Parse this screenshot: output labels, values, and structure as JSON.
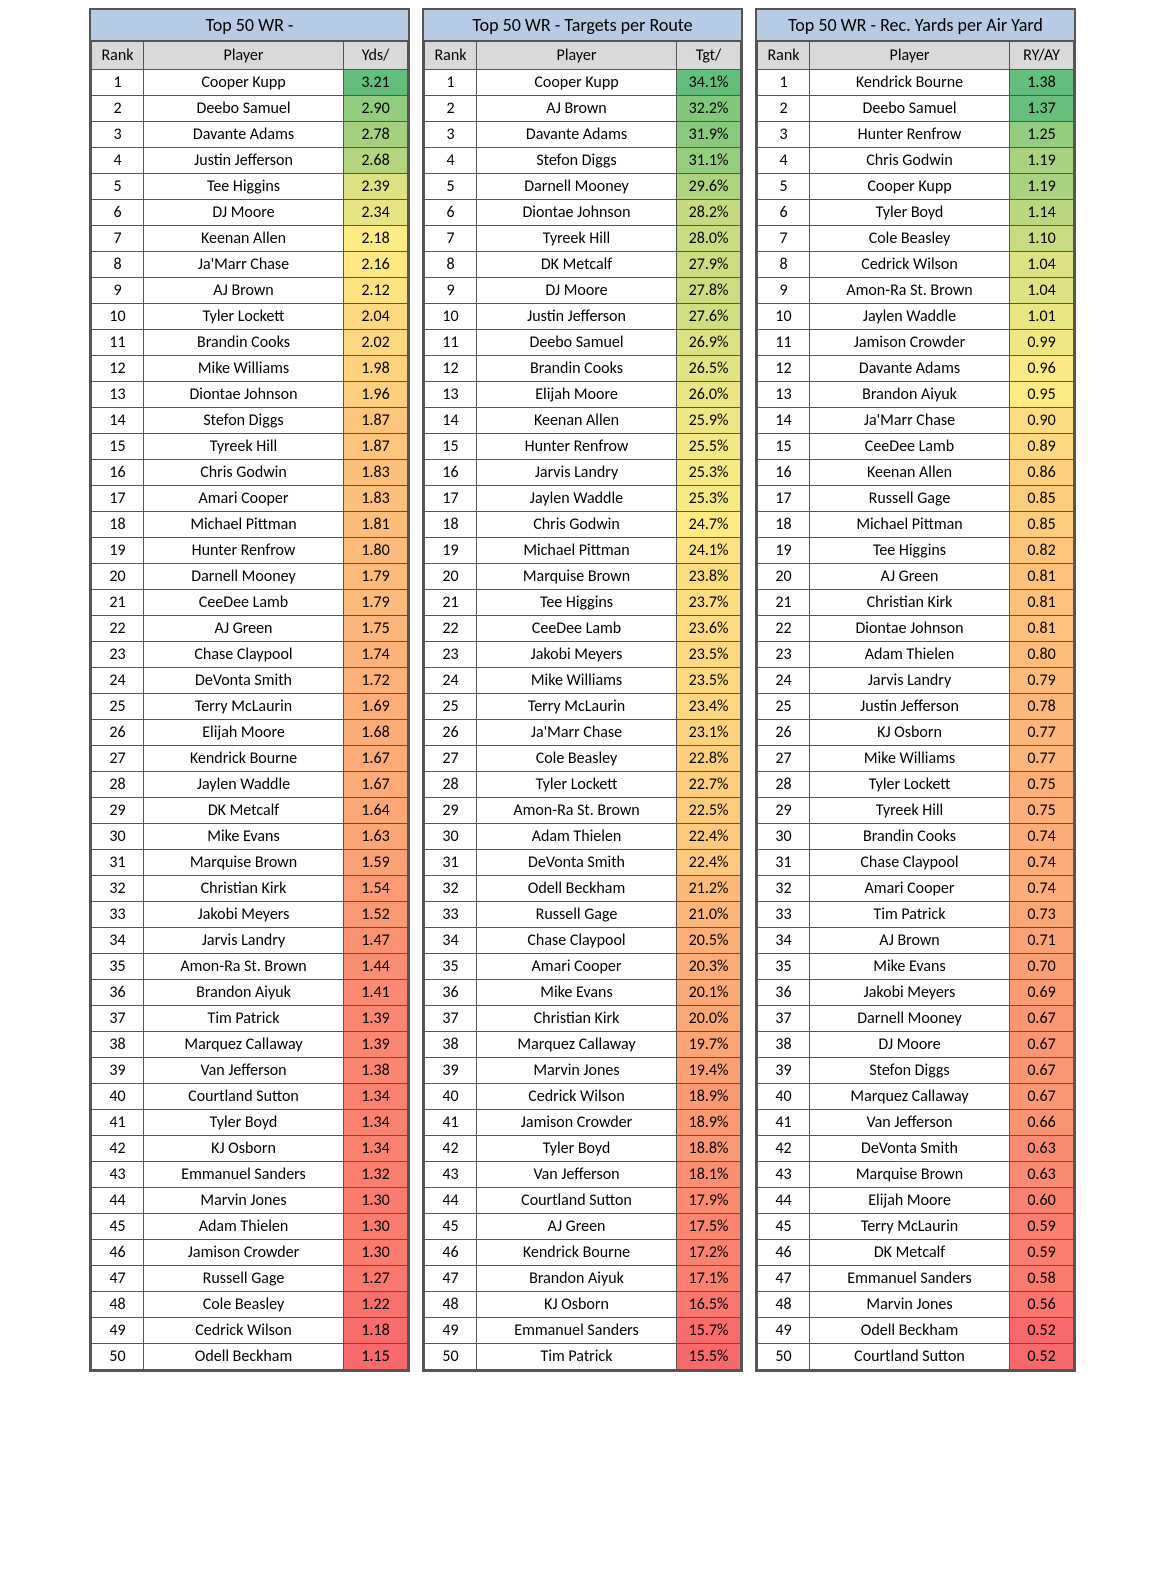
{
  "color_scale": {
    "min_color": "#f8696b",
    "mid_color": "#ffeb84",
    "max_color": "#63be7b"
  },
  "tables": [
    {
      "title": "Top 50 WR -",
      "headers": {
        "rank": "Rank",
        "player": "Player",
        "value": "Yds/"
      },
      "value_fmt": "num2",
      "v_min": 1.15,
      "v_max": 3.21,
      "rows": [
        {
          "rank": 1,
          "player": "Cooper Kupp",
          "value": 3.21
        },
        {
          "rank": 2,
          "player": "Deebo Samuel",
          "value": 2.9
        },
        {
          "rank": 3,
          "player": "Davante Adams",
          "value": 2.78
        },
        {
          "rank": 4,
          "player": "Justin Jefferson",
          "value": 2.68
        },
        {
          "rank": 5,
          "player": "Tee Higgins",
          "value": 2.39
        },
        {
          "rank": 6,
          "player": "DJ Moore",
          "value": 2.34
        },
        {
          "rank": 7,
          "player": "Keenan Allen",
          "value": 2.18
        },
        {
          "rank": 8,
          "player": "Ja'Marr Chase",
          "value": 2.16
        },
        {
          "rank": 9,
          "player": "AJ Brown",
          "value": 2.12
        },
        {
          "rank": 10,
          "player": "Tyler Lockett",
          "value": 2.04
        },
        {
          "rank": 11,
          "player": "Brandin Cooks",
          "value": 2.02
        },
        {
          "rank": 12,
          "player": "Mike Williams",
          "value": 1.98
        },
        {
          "rank": 13,
          "player": "Diontae Johnson",
          "value": 1.96
        },
        {
          "rank": 14,
          "player": "Stefon Diggs",
          "value": 1.87
        },
        {
          "rank": 15,
          "player": "Tyreek Hill",
          "value": 1.87
        },
        {
          "rank": 16,
          "player": "Chris Godwin",
          "value": 1.83
        },
        {
          "rank": 17,
          "player": "Amari Cooper",
          "value": 1.83
        },
        {
          "rank": 18,
          "player": "Michael Pittman",
          "value": 1.81
        },
        {
          "rank": 19,
          "player": "Hunter Renfrow",
          "value": 1.8
        },
        {
          "rank": 20,
          "player": "Darnell Mooney",
          "value": 1.79
        },
        {
          "rank": 21,
          "player": "CeeDee Lamb",
          "value": 1.79
        },
        {
          "rank": 22,
          "player": "AJ Green",
          "value": 1.75
        },
        {
          "rank": 23,
          "player": "Chase Claypool",
          "value": 1.74
        },
        {
          "rank": 24,
          "player": "DeVonta Smith",
          "value": 1.72
        },
        {
          "rank": 25,
          "player": "Terry McLaurin",
          "value": 1.69
        },
        {
          "rank": 26,
          "player": "Elijah Moore",
          "value": 1.68
        },
        {
          "rank": 27,
          "player": "Kendrick Bourne",
          "value": 1.67
        },
        {
          "rank": 28,
          "player": "Jaylen Waddle",
          "value": 1.67
        },
        {
          "rank": 29,
          "player": "DK Metcalf",
          "value": 1.64
        },
        {
          "rank": 30,
          "player": "Mike Evans",
          "value": 1.63
        },
        {
          "rank": 31,
          "player": "Marquise Brown",
          "value": 1.59
        },
        {
          "rank": 32,
          "player": "Christian Kirk",
          "value": 1.54
        },
        {
          "rank": 33,
          "player": "Jakobi Meyers",
          "value": 1.52
        },
        {
          "rank": 34,
          "player": "Jarvis Landry",
          "value": 1.47
        },
        {
          "rank": 35,
          "player": "Amon-Ra St. Brown",
          "value": 1.44
        },
        {
          "rank": 36,
          "player": "Brandon Aiyuk",
          "value": 1.41
        },
        {
          "rank": 37,
          "player": "Tim Patrick",
          "value": 1.39
        },
        {
          "rank": 38,
          "player": "Marquez Callaway",
          "value": 1.39
        },
        {
          "rank": 39,
          "player": "Van Jefferson",
          "value": 1.38
        },
        {
          "rank": 40,
          "player": "Courtland Sutton",
          "value": 1.34
        },
        {
          "rank": 41,
          "player": "Tyler Boyd",
          "value": 1.34
        },
        {
          "rank": 42,
          "player": "KJ Osborn",
          "value": 1.34
        },
        {
          "rank": 43,
          "player": "Emmanuel Sanders",
          "value": 1.32
        },
        {
          "rank": 44,
          "player": "Marvin Jones",
          "value": 1.3
        },
        {
          "rank": 45,
          "player": "Adam Thielen",
          "value": 1.3
        },
        {
          "rank": 46,
          "player": "Jamison Crowder",
          "value": 1.3
        },
        {
          "rank": 47,
          "player": "Russell Gage",
          "value": 1.27
        },
        {
          "rank": 48,
          "player": "Cole Beasley",
          "value": 1.22
        },
        {
          "rank": 49,
          "player": "Cedrick Wilson",
          "value": 1.18
        },
        {
          "rank": 50,
          "player": "Odell Beckham",
          "value": 1.15
        }
      ]
    },
    {
      "title": "Top 50 WR - Targets per Route",
      "headers": {
        "rank": "Rank",
        "player": "Player",
        "value": "Tgt/"
      },
      "value_fmt": "pct1",
      "v_min": 15.5,
      "v_max": 34.1,
      "rows": [
        {
          "rank": 1,
          "player": "Cooper Kupp",
          "value": 34.1
        },
        {
          "rank": 2,
          "player": "AJ Brown",
          "value": 32.2
        },
        {
          "rank": 3,
          "player": "Davante Adams",
          "value": 31.9
        },
        {
          "rank": 4,
          "player": "Stefon Diggs",
          "value": 31.1
        },
        {
          "rank": 5,
          "player": "Darnell Mooney",
          "value": 29.6
        },
        {
          "rank": 6,
          "player": "Diontae Johnson",
          "value": 28.2
        },
        {
          "rank": 7,
          "player": "Tyreek Hill",
          "value": 28.0
        },
        {
          "rank": 8,
          "player": "DK Metcalf",
          "value": 27.9
        },
        {
          "rank": 9,
          "player": "DJ Moore",
          "value": 27.8
        },
        {
          "rank": 10,
          "player": "Justin Jefferson",
          "value": 27.6
        },
        {
          "rank": 11,
          "player": "Deebo Samuel",
          "value": 26.9
        },
        {
          "rank": 12,
          "player": "Brandin Cooks",
          "value": 26.5
        },
        {
          "rank": 13,
          "player": "Elijah Moore",
          "value": 26.0
        },
        {
          "rank": 14,
          "player": "Keenan Allen",
          "value": 25.9
        },
        {
          "rank": 15,
          "player": "Hunter Renfrow",
          "value": 25.5
        },
        {
          "rank": 16,
          "player": "Jarvis Landry",
          "value": 25.3
        },
        {
          "rank": 17,
          "player": "Jaylen Waddle",
          "value": 25.3
        },
        {
          "rank": 18,
          "player": "Chris Godwin",
          "value": 24.7
        },
        {
          "rank": 19,
          "player": "Michael Pittman",
          "value": 24.1
        },
        {
          "rank": 20,
          "player": "Marquise Brown",
          "value": 23.8
        },
        {
          "rank": 21,
          "player": "Tee Higgins",
          "value": 23.7
        },
        {
          "rank": 22,
          "player": "CeeDee Lamb",
          "value": 23.6
        },
        {
          "rank": 23,
          "player": "Jakobi Meyers",
          "value": 23.5
        },
        {
          "rank": 24,
          "player": "Mike Williams",
          "value": 23.5
        },
        {
          "rank": 25,
          "player": "Terry McLaurin",
          "value": 23.4
        },
        {
          "rank": 26,
          "player": "Ja'Marr Chase",
          "value": 23.1
        },
        {
          "rank": 27,
          "player": "Cole Beasley",
          "value": 22.8
        },
        {
          "rank": 28,
          "player": "Tyler Lockett",
          "value": 22.7
        },
        {
          "rank": 29,
          "player": "Amon-Ra St. Brown",
          "value": 22.5
        },
        {
          "rank": 30,
          "player": "Adam Thielen",
          "value": 22.4
        },
        {
          "rank": 31,
          "player": "DeVonta Smith",
          "value": 22.4
        },
        {
          "rank": 32,
          "player": "Odell Beckham",
          "value": 21.2
        },
        {
          "rank": 33,
          "player": "Russell Gage",
          "value": 21.0
        },
        {
          "rank": 34,
          "player": "Chase Claypool",
          "value": 20.5
        },
        {
          "rank": 35,
          "player": "Amari Cooper",
          "value": 20.3
        },
        {
          "rank": 36,
          "player": "Mike Evans",
          "value": 20.1
        },
        {
          "rank": 37,
          "player": "Christian Kirk",
          "value": 20.0
        },
        {
          "rank": 38,
          "player": "Marquez Callaway",
          "value": 19.7
        },
        {
          "rank": 39,
          "player": "Marvin Jones",
          "value": 19.4
        },
        {
          "rank": 40,
          "player": "Cedrick Wilson",
          "value": 18.9
        },
        {
          "rank": 41,
          "player": "Jamison Crowder",
          "value": 18.9
        },
        {
          "rank": 42,
          "player": "Tyler Boyd",
          "value": 18.8
        },
        {
          "rank": 43,
          "player": "Van Jefferson",
          "value": 18.1
        },
        {
          "rank": 44,
          "player": "Courtland Sutton",
          "value": 17.9
        },
        {
          "rank": 45,
          "player": "AJ Green",
          "value": 17.5
        },
        {
          "rank": 46,
          "player": "Kendrick Bourne",
          "value": 17.2
        },
        {
          "rank": 47,
          "player": "Brandon Aiyuk",
          "value": 17.1
        },
        {
          "rank": 48,
          "player": "KJ Osborn",
          "value": 16.5
        },
        {
          "rank": 49,
          "player": "Emmanuel Sanders",
          "value": 15.7
        },
        {
          "rank": 50,
          "player": "Tim Patrick",
          "value": 15.5
        }
      ]
    },
    {
      "title": "Top 50 WR - Rec. Yards per Air Yard",
      "headers": {
        "rank": "Rank",
        "player": "Player",
        "value": "RY/AY"
      },
      "value_fmt": "num2",
      "v_min": 0.52,
      "v_max": 1.38,
      "rows": [
        {
          "rank": 1,
          "player": "Kendrick Bourne",
          "value": 1.38
        },
        {
          "rank": 2,
          "player": "Deebo Samuel",
          "value": 1.37
        },
        {
          "rank": 3,
          "player": "Hunter Renfrow",
          "value": 1.25
        },
        {
          "rank": 4,
          "player": "Chris Godwin",
          "value": 1.19
        },
        {
          "rank": 5,
          "player": "Cooper Kupp",
          "value": 1.19
        },
        {
          "rank": 6,
          "player": "Tyler Boyd",
          "value": 1.14
        },
        {
          "rank": 7,
          "player": "Cole Beasley",
          "value": 1.1
        },
        {
          "rank": 8,
          "player": "Cedrick Wilson",
          "value": 1.04
        },
        {
          "rank": 9,
          "player": "Amon-Ra St. Brown",
          "value": 1.04
        },
        {
          "rank": 10,
          "player": "Jaylen Waddle",
          "value": 1.01
        },
        {
          "rank": 11,
          "player": "Jamison Crowder",
          "value": 0.99
        },
        {
          "rank": 12,
          "player": "Davante Adams",
          "value": 0.96
        },
        {
          "rank": 13,
          "player": "Brandon Aiyuk",
          "value": 0.95
        },
        {
          "rank": 14,
          "player": "Ja'Marr Chase",
          "value": 0.9
        },
        {
          "rank": 15,
          "player": "CeeDee Lamb",
          "value": 0.89
        },
        {
          "rank": 16,
          "player": "Keenan Allen",
          "value": 0.86
        },
        {
          "rank": 17,
          "player": "Russell Gage",
          "value": 0.85
        },
        {
          "rank": 18,
          "player": "Michael Pittman",
          "value": 0.85
        },
        {
          "rank": 19,
          "player": "Tee Higgins",
          "value": 0.82
        },
        {
          "rank": 20,
          "player": "AJ Green",
          "value": 0.81
        },
        {
          "rank": 21,
          "player": "Christian Kirk",
          "value": 0.81
        },
        {
          "rank": 22,
          "player": "Diontae Johnson",
          "value": 0.81
        },
        {
          "rank": 23,
          "player": "Adam Thielen",
          "value": 0.8
        },
        {
          "rank": 24,
          "player": "Jarvis Landry",
          "value": 0.79
        },
        {
          "rank": 25,
          "player": "Justin Jefferson",
          "value": 0.78
        },
        {
          "rank": 26,
          "player": "KJ Osborn",
          "value": 0.77
        },
        {
          "rank": 27,
          "player": "Mike Williams",
          "value": 0.77
        },
        {
          "rank": 28,
          "player": "Tyler Lockett",
          "value": 0.75
        },
        {
          "rank": 29,
          "player": "Tyreek Hill",
          "value": 0.75
        },
        {
          "rank": 30,
          "player": "Brandin Cooks",
          "value": 0.74
        },
        {
          "rank": 31,
          "player": "Chase Claypool",
          "value": 0.74
        },
        {
          "rank": 32,
          "player": "Amari Cooper",
          "value": 0.74
        },
        {
          "rank": 33,
          "player": "Tim Patrick",
          "value": 0.73
        },
        {
          "rank": 34,
          "player": "AJ Brown",
          "value": 0.71
        },
        {
          "rank": 35,
          "player": "Mike Evans",
          "value": 0.7
        },
        {
          "rank": 36,
          "player": "Jakobi Meyers",
          "value": 0.69
        },
        {
          "rank": 37,
          "player": "Darnell Mooney",
          "value": 0.67
        },
        {
          "rank": 38,
          "player": "DJ Moore",
          "value": 0.67
        },
        {
          "rank": 39,
          "player": "Stefon Diggs",
          "value": 0.67
        },
        {
          "rank": 40,
          "player": "Marquez Callaway",
          "value": 0.67
        },
        {
          "rank": 41,
          "player": "Van Jefferson",
          "value": 0.66
        },
        {
          "rank": 42,
          "player": "DeVonta Smith",
          "value": 0.63
        },
        {
          "rank": 43,
          "player": "Marquise Brown",
          "value": 0.63
        },
        {
          "rank": 44,
          "player": "Elijah Moore",
          "value": 0.6
        },
        {
          "rank": 45,
          "player": "Terry McLaurin",
          "value": 0.59
        },
        {
          "rank": 46,
          "player": "DK Metcalf",
          "value": 0.59
        },
        {
          "rank": 47,
          "player": "Emmanuel Sanders",
          "value": 0.58
        },
        {
          "rank": 48,
          "player": "Marvin Jones",
          "value": 0.56
        },
        {
          "rank": 49,
          "player": "Odell Beckham",
          "value": 0.52
        },
        {
          "rank": 50,
          "player": "Courtland Sutton",
          "value": 0.52
        }
      ]
    }
  ]
}
